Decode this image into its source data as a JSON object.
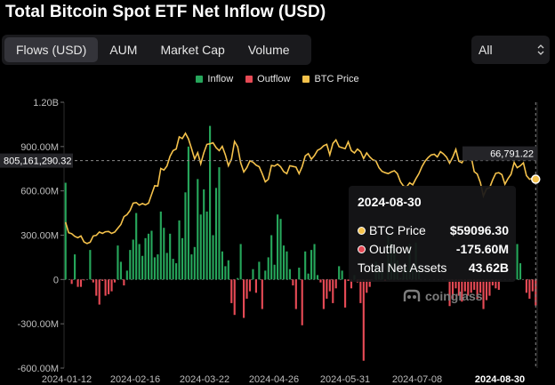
{
  "header": {
    "title": "Total Bitcoin Spot ETF Net Inflow (USD)"
  },
  "tabs": [
    {
      "label": "Flows (USD)",
      "active": true
    },
    {
      "label": "AUM",
      "active": false
    },
    {
      "label": "Market Cap",
      "active": false
    },
    {
      "label": "Volume",
      "active": false
    }
  ],
  "range_select": {
    "value": "All"
  },
  "colors": {
    "inflow": "#26a65b",
    "outflow": "#e64a55",
    "btc_price": "#f5c24b",
    "accent": "#f5c24b"
  },
  "crosshair": {
    "left_value": "805,161,290.32",
    "right_value": "66,791.22"
  },
  "tooltip": {
    "date": "2024-08-30",
    "rows": [
      {
        "label": "BTC Price",
        "value": "$59096.30"
      },
      {
        "label": "Outflow",
        "value": "-175.60M"
      },
      {
        "label": "Total Net Assets",
        "value": "43.62B"
      }
    ]
  },
  "watermark": {
    "text": "coinglass",
    "icon": "coinglass-logo-icon"
  },
  "chart_data": {
    "type": "bar",
    "title": "Total Bitcoin Spot ETF Net Inflow (USD)",
    "legend": [
      "Inflow",
      "Outflow",
      "BTC Price"
    ],
    "legend_position": "top-center",
    "y_ticks": [
      "1.20B",
      "900.00M",
      "600.00M",
      "300.00M",
      "0",
      "-300.00M",
      "-600.00M"
    ],
    "ylim": [
      -600,
      1200
    ],
    "y_unit": "M USD",
    "x_ticks": [
      "2024-01-12",
      "2024-02-16",
      "2024-03-22",
      "2024-04-26",
      "2024-05-31",
      "2024-07-08",
      "2024-08-30"
    ],
    "grid": false,
    "series": [
      {
        "name": "Net Inflow",
        "unit": "M USD",
        "values": [
          655,
          0,
          -30,
          170,
          -50,
          -50,
          -5,
          0,
          200,
          -20,
          -110,
          -170,
          -10,
          -110,
          -100,
          -80,
          -20,
          230,
          120,
          -40,
          60,
          200,
          270,
          450,
          240,
          160,
          280,
          310,
          330,
          150,
          170,
          460,
          350,
          180,
          310,
          140,
          110,
          400,
          280,
          590,
          900,
          170,
          220,
          680,
          440,
          610,
          460,
          1040,
          300,
          620,
          760,
          190,
          90,
          130,
          -160,
          -240,
          10,
          240,
          -260,
          -130,
          -80,
          70,
          -90,
          120,
          -200,
          60,
          150,
          300,
          100,
          440,
          410,
          230,
          190,
          70,
          -40,
          -200,
          80,
          -310,
          190,
          40,
          200,
          240,
          30,
          -20,
          -200,
          -130,
          -80,
          -160,
          -60,
          90,
          60,
          -190,
          -10,
          -60,
          30,
          -20,
          -160,
          -550,
          -90,
          -50,
          0,
          120,
          80,
          50,
          -10,
          300,
          250,
          220,
          130,
          10,
          60,
          80,
          240,
          100,
          250,
          90,
          0,
          0,
          0,
          0,
          0,
          0,
          0,
          0,
          0,
          -180,
          -130,
          -60,
          -110,
          -150,
          -80,
          -110,
          -90,
          -70,
          -130,
          -90,
          -200,
          -140,
          -110,
          -40,
          -60,
          -70,
          0,
          0,
          0,
          0,
          0,
          240,
          110,
          0,
          -90,
          -130,
          -80,
          -176
        ]
      },
      {
        "name": "BTC Price",
        "unit": "USD",
        "values": [
          46000,
          42800,
          42500,
          41700,
          41300,
          41800,
          40000,
          39500,
          39900,
          41800,
          42000,
          43000,
          42600,
          43100,
          43200,
          42600,
          43000,
          44200,
          45300,
          47700,
          48300,
          49600,
          51800,
          52000,
          51200,
          51700,
          51300,
          51800,
          54500,
          57100,
          57000,
          62400,
          61900,
          63100,
          66100,
          67800,
          68300,
          72000,
          71500,
          73100,
          71400,
          68400,
          65300,
          67200,
          63800,
          67200,
          69700,
          69900,
          70200,
          68700,
          67800,
          69100,
          66500,
          63200,
          65300,
          70600,
          69000,
          64100,
          61300,
          62600,
          64700,
          64300,
          63400,
          62900,
          60800,
          58300,
          59100,
          63300,
          63100,
          63700,
          62900,
          61400,
          60800,
          63200,
          63000,
          62800,
          60800,
          62900,
          66200,
          66900,
          65200,
          66300,
          67900,
          68400,
          69300,
          69700,
          66500,
          70000,
          71100,
          69000,
          68700,
          68400,
          70500,
          67800,
          67100,
          68300,
          67500,
          65400,
          67100,
          65900,
          65000,
          64700,
          62600,
          61500,
          61100,
          60800,
          61300,
          61700,
          60800,
          58300,
          57000,
          56800,
          58000,
          57400,
          59200,
          60800,
          63000,
          64600,
          65700,
          66500,
          66700,
          65900,
          67500,
          66800,
          65800,
          64000,
          65800,
          68200,
          64600,
          64100,
          65900,
          66800,
          66000,
          61400,
          60700,
          58100,
          54000,
          56200,
          56500,
          58900,
          60900,
          61100,
          60500,
          57600,
          59300,
          60600,
          64200,
          62600,
          63200,
          64100,
          60200,
          59100,
          59400,
          59100
        ]
      }
    ]
  }
}
